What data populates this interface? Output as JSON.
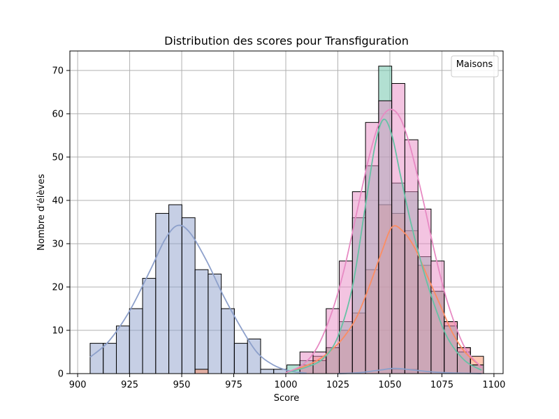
{
  "chart_data": {
    "type": "histogram",
    "title": "Distribution des scores pour Transfiguration",
    "xlabel": "Score",
    "ylabel": "Nombre d'élèves",
    "xlim": [
      900,
      1100
    ],
    "ylim": [
      0,
      70
    ],
    "xticks": [
      900,
      925,
      950,
      975,
      1000,
      1025,
      1050,
      1075,
      1100
    ],
    "yticks": [
      0,
      10,
      20,
      30,
      40,
      50,
      60,
      70
    ],
    "grid": true,
    "legend": {
      "title": "Maisons",
      "position": "top-right",
      "entries": []
    },
    "bins": [
      906,
      912.3,
      918.6,
      924.9,
      931.2,
      937.5,
      943.8,
      950.1,
      956.4,
      962.7,
      969.0,
      975.3,
      981.6,
      987.9,
      994.2,
      1000.5,
      1006.8,
      1013.1,
      1019.4,
      1025.7,
      1032.0,
      1038.3,
      1044.6,
      1050.9,
      1057.2,
      1063.5,
      1069.8,
      1076.1,
      1082.4,
      1088.7,
      1095.0
    ],
    "series": [
      {
        "color": "#8da0cb",
        "values": [
          7,
          7,
          11,
          15,
          22,
          37,
          39,
          36,
          24,
          23,
          15,
          7,
          8,
          1,
          1,
          0,
          0,
          0,
          0,
          0,
          0,
          0,
          0,
          1,
          1,
          0,
          0,
          0,
          0,
          0
        ]
      },
      {
        "color": "#fc8d62",
        "values": [
          0,
          0,
          0,
          0,
          0,
          0,
          0,
          0,
          1,
          0,
          0,
          0,
          0,
          0,
          0,
          0,
          2,
          4,
          6,
          10,
          14,
          24,
          39,
          37,
          33,
          25,
          19,
          12,
          6,
          4
        ]
      },
      {
        "color": "#66c2a5",
        "values": [
          0,
          0,
          0,
          0,
          0,
          0,
          0,
          0,
          0,
          0,
          0,
          0,
          0,
          0,
          0,
          2,
          3,
          3,
          6,
          12,
          36,
          48,
          71,
          44,
          42,
          27,
          19,
          11,
          5,
          2
        ]
      },
      {
        "color": "#e78ac3",
        "values": [
          0,
          0,
          0,
          0,
          0,
          0,
          0,
          0,
          0,
          0,
          0,
          0,
          0,
          0,
          0,
          0,
          5,
          5,
          15,
          26,
          42,
          58,
          63,
          67,
          54,
          38,
          26,
          12,
          6,
          2
        ]
      }
    ],
    "kde": [
      {
        "color": "#8da0cb",
        "x": [
          906,
          915,
          925,
          935,
          942,
          948,
          954,
          962,
          970,
          978,
          986,
          994,
          1002,
          1010
        ],
        "y": [
          3.8,
          7.5,
          14.5,
          24,
          31,
          34.2,
          32.5,
          26,
          18,
          11,
          5,
          2,
          0.6,
          0.1
        ]
      },
      {
        "color": "#8da0cb",
        "x": [
          1025,
          1035,
          1045,
          1052,
          1060,
          1070,
          1080,
          1094
        ],
        "y": [
          0,
          0.2,
          0.8,
          1.2,
          0.9,
          0.4,
          0.15,
          0
        ]
      },
      {
        "color": "#fc8d62",
        "x": [
          1000,
          1008,
          1015,
          1022,
          1028,
          1034,
          1040,
          1046,
          1051,
          1056,
          1062,
          1068,
          1074,
          1080,
          1086,
          1094
        ],
        "y": [
          0.2,
          1.5,
          3,
          5.5,
          8.5,
          13,
          20,
          28,
          33.8,
          33,
          29,
          22.5,
          16,
          9.5,
          5,
          1.5
        ]
      },
      {
        "color": "#66c2a5",
        "x": [
          1000,
          1010,
          1018,
          1025,
          1032,
          1038,
          1043,
          1047,
          1051,
          1055,
          1060,
          1066,
          1072,
          1078,
          1086,
          1094
        ],
        "y": [
          0.2,
          1.5,
          3.5,
          8.5,
          20,
          38,
          53,
          58.7,
          55,
          46,
          35,
          24,
          15,
          8,
          3,
          0.8
        ]
      },
      {
        "color": "#e78ac3",
        "x": [
          1000,
          1008,
          1015,
          1022,
          1028,
          1034,
          1040,
          1045,
          1050,
          1055,
          1060,
          1066,
          1072,
          1078,
          1086,
          1094
        ],
        "y": [
          0.2,
          2,
          6,
          14,
          24,
          37,
          50,
          58,
          61,
          59,
          52,
          40,
          27,
          16,
          6,
          1.5
        ]
      }
    ]
  }
}
